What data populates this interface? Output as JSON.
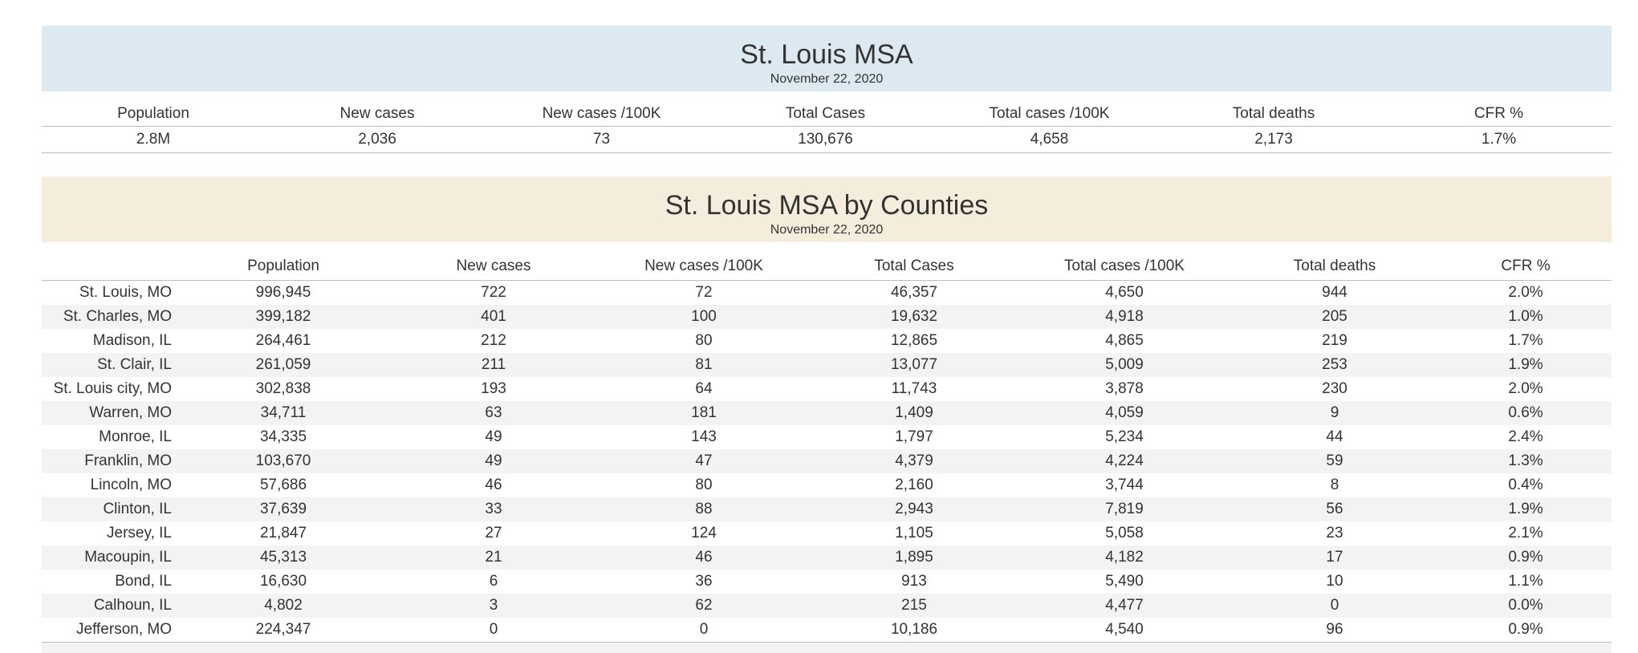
{
  "summary": {
    "title": "St. Louis MSA",
    "date": "November 22, 2020",
    "headers": [
      "Population",
      "New cases",
      "New cases /100K",
      "Total Cases",
      "Total cases /100K",
      "Total deaths",
      "CFR %"
    ],
    "values": [
      "2.8M",
      "2,036",
      "73",
      "130,676",
      "4,658",
      "2,173",
      "1.7%"
    ]
  },
  "counties": {
    "title": "St. Louis MSA by Counties",
    "date": "November 22, 2020",
    "headers": [
      "Population",
      "New cases",
      "New cases /100K",
      "Total Cases",
      "Total cases /100K",
      "Total deaths",
      "CFR %"
    ],
    "rows": [
      {
        "county": "St. Louis, MO",
        "population": "996,945",
        "new_cases": "722",
        "new_per100k": "72",
        "total_cases": "46,357",
        "total_per100k": "4,650",
        "deaths": "944",
        "cfr": "2.0%"
      },
      {
        "county": "St. Charles, MO",
        "population": "399,182",
        "new_cases": "401",
        "new_per100k": "100",
        "total_cases": "19,632",
        "total_per100k": "4,918",
        "deaths": "205",
        "cfr": "1.0%"
      },
      {
        "county": "Madison, IL",
        "population": "264,461",
        "new_cases": "212",
        "new_per100k": "80",
        "total_cases": "12,865",
        "total_per100k": "4,865",
        "deaths": "219",
        "cfr": "1.7%"
      },
      {
        "county": "St. Clair, IL",
        "population": "261,059",
        "new_cases": "211",
        "new_per100k": "81",
        "total_cases": "13,077",
        "total_per100k": "5,009",
        "deaths": "253",
        "cfr": "1.9%"
      },
      {
        "county": "St. Louis city, MO",
        "population": "302,838",
        "new_cases": "193",
        "new_per100k": "64",
        "total_cases": "11,743",
        "total_per100k": "3,878",
        "deaths": "230",
        "cfr": "2.0%"
      },
      {
        "county": "Warren, MO",
        "population": "34,711",
        "new_cases": "63",
        "new_per100k": "181",
        "total_cases": "1,409",
        "total_per100k": "4,059",
        "deaths": "9",
        "cfr": "0.6%"
      },
      {
        "county": "Monroe, IL",
        "population": "34,335",
        "new_cases": "49",
        "new_per100k": "143",
        "total_cases": "1,797",
        "total_per100k": "5,234",
        "deaths": "44",
        "cfr": "2.4%"
      },
      {
        "county": "Franklin, MO",
        "population": "103,670",
        "new_cases": "49",
        "new_per100k": "47",
        "total_cases": "4,379",
        "total_per100k": "4,224",
        "deaths": "59",
        "cfr": "1.3%"
      },
      {
        "county": "Lincoln, MO",
        "population": "57,686",
        "new_cases": "46",
        "new_per100k": "80",
        "total_cases": "2,160",
        "total_per100k": "3,744",
        "deaths": "8",
        "cfr": "0.4%"
      },
      {
        "county": "Clinton, IL",
        "population": "37,639",
        "new_cases": "33",
        "new_per100k": "88",
        "total_cases": "2,943",
        "total_per100k": "7,819",
        "deaths": "56",
        "cfr": "1.9%"
      },
      {
        "county": "Jersey, IL",
        "population": "21,847",
        "new_cases": "27",
        "new_per100k": "124",
        "total_cases": "1,105",
        "total_per100k": "5,058",
        "deaths": "23",
        "cfr": "2.1%"
      },
      {
        "county": "Macoupin, IL",
        "population": "45,313",
        "new_cases": "21",
        "new_per100k": "46",
        "total_cases": "1,895",
        "total_per100k": "4,182",
        "deaths": "17",
        "cfr": "0.9%"
      },
      {
        "county": "Bond, IL",
        "population": "16,630",
        "new_cases": "6",
        "new_per100k": "36",
        "total_cases": "913",
        "total_per100k": "5,490",
        "deaths": "10",
        "cfr": "1.1%"
      },
      {
        "county": "Calhoun, IL",
        "population": "4,802",
        "new_cases": "3",
        "new_per100k": "62",
        "total_cases": "215",
        "total_per100k": "4,477",
        "deaths": "0",
        "cfr": "0.0%"
      },
      {
        "county": "Jefferson, MO",
        "population": "224,347",
        "new_cases": "0",
        "new_per100k": "0",
        "total_cases": "10,186",
        "total_per100k": "4,540",
        "deaths": "96",
        "cfr": "0.9%"
      }
    ]
  },
  "colors": {
    "summary_header_bg": "#dde9f1",
    "county_header_bg": "#f5eddc",
    "alt_row_bg": "#f3f3f3"
  }
}
